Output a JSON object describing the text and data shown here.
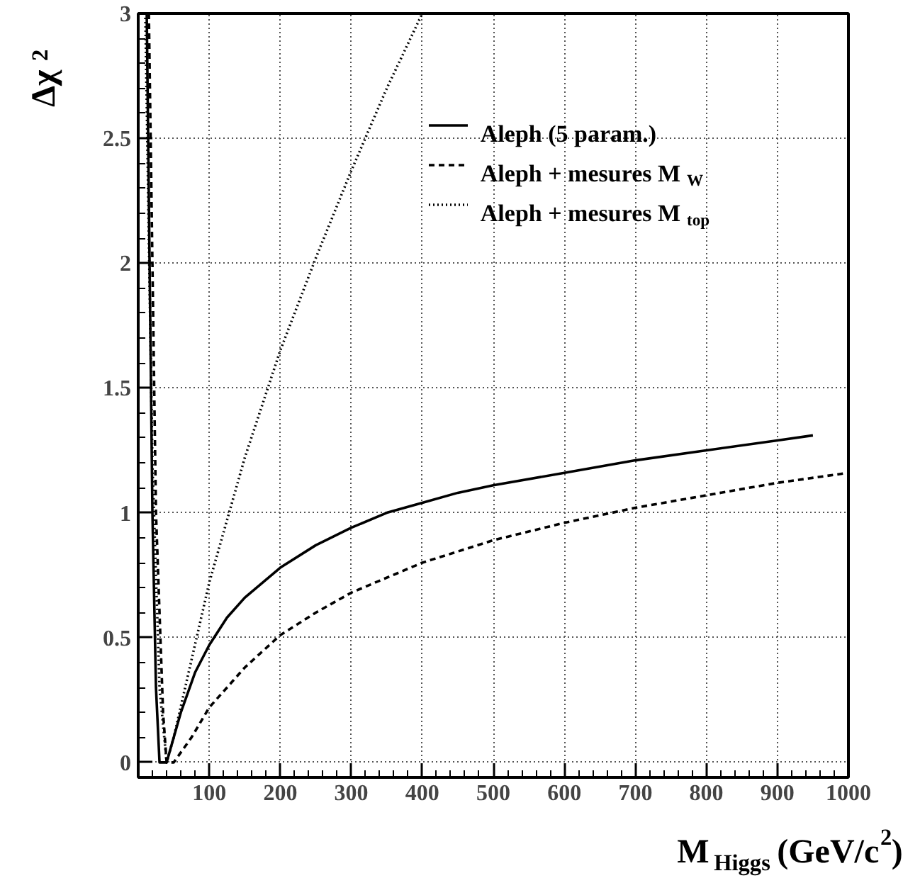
{
  "chart_data": {
    "type": "line",
    "xlabel": "M$_{Higgs}$ (GeV/c$^{2}$)",
    "ylabel": "Δχ$^{2}$",
    "xlim": [
      0,
      1000
    ],
    "ylim": [
      -0.06,
      3
    ],
    "xticks": [
      100,
      200,
      300,
      400,
      500,
      600,
      700,
      800,
      900,
      1000
    ],
    "yticks": [
      0,
      0.5,
      1,
      1.5,
      2,
      2.5,
      3
    ],
    "grid": true,
    "legend": "top right",
    "series": [
      {
        "name": "Aleph (5 param.)",
        "color": "#000000",
        "line_style": "solid",
        "x": [
          12,
          20,
          25,
          30,
          40,
          60,
          80,
          100,
          125,
          150,
          200,
          250,
          300,
          350,
          400,
          450,
          500,
          600,
          700,
          800,
          900,
          950
        ],
        "values": [
          3,
          1.0,
          0.3,
          0,
          0,
          0.2,
          0.36,
          0.47,
          0.58,
          0.66,
          0.78,
          0.87,
          0.94,
          1.0,
          1.04,
          1.08,
          1.11,
          1.16,
          1.21,
          1.25,
          1.29,
          1.31
        ]
      },
      {
        "name": "Aleph + mesures M$_{W}$",
        "color": "#000000",
        "line_style": "dashed",
        "x": [
          15,
          25,
          35,
          40,
          50,
          75,
          100,
          150,
          200,
          250,
          300,
          400,
          500,
          600,
          700,
          800,
          900,
          1000
        ],
        "values": [
          3,
          1,
          0.2,
          0,
          0,
          0.1,
          0.22,
          0.38,
          0.51,
          0.6,
          0.68,
          0.8,
          0.89,
          0.96,
          1.02,
          1.07,
          1.12,
          1.16
        ]
      },
      {
        "name": "Aleph + mesures M$_{top}$",
        "color": "#000000",
        "line_style": "dotted",
        "x": [
          10,
          20,
          30,
          40,
          50,
          100,
          150,
          200,
          250,
          300,
          350,
          400
        ],
        "values": [
          3,
          1.2,
          0.3,
          0,
          0.1,
          0.72,
          1.22,
          1.65,
          2.02,
          2.37,
          2.7,
          3
        ]
      }
    ]
  }
}
